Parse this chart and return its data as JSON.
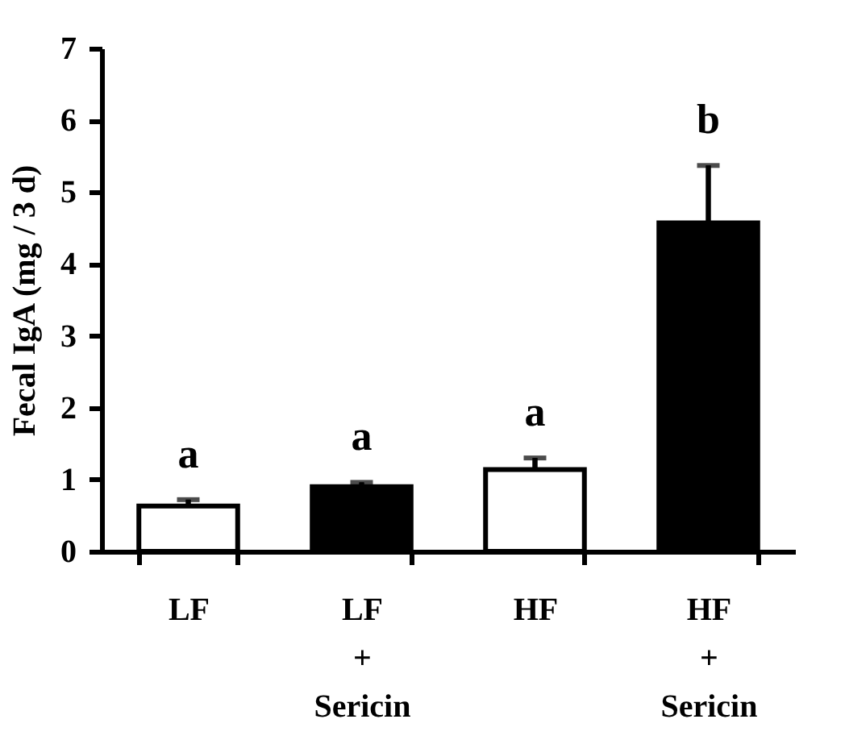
{
  "chart_data": {
    "type": "bar",
    "ylabel": "Fecal IgA (mg / 3 d)",
    "categories": [
      "LF",
      "LF\n+\nSericin",
      "HF",
      "HF\n+\nSericin"
    ],
    "values": [
      0.63,
      0.9,
      1.14,
      4.57
    ],
    "errors": [
      0.09,
      0.06,
      0.16,
      0.8
    ],
    "colors": [
      "#ffffff",
      "#000000",
      "#ffffff",
      "#000000"
    ],
    "ylim": [
      0,
      7
    ],
    "yticks": [
      0,
      1,
      2,
      3,
      4,
      5,
      6,
      7
    ],
    "grid": false,
    "annotations": [
      {
        "text": "a",
        "x": "LF",
        "y": 0.72
      },
      {
        "text": "a",
        "x": "LF\n+\nSericin",
        "y": 0.96
      },
      {
        "text": "a",
        "x": "HF",
        "y": 1.3
      },
      {
        "text": "b",
        "x": "HF\n+\nSericin",
        "y": 5.37
      }
    ]
  }
}
